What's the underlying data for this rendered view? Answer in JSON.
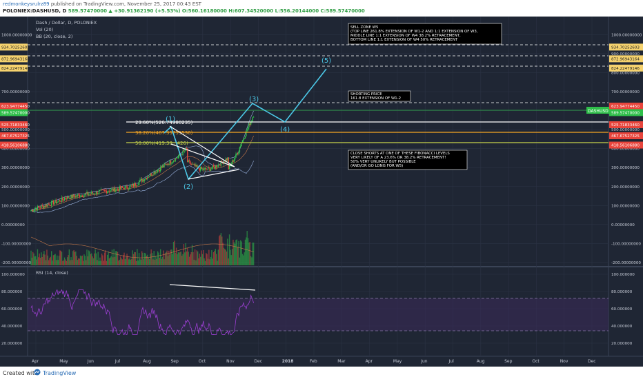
{
  "header": {
    "user": "redmonkeysrulrz89",
    "published": "published on TradingView.com, November 25, 2017 00:43 EST",
    "ohlc_prefix": "POLONIEX:DASHUSD, D",
    "ohlc_change": "589.57470000 ▲ +30.91362190 (+5.53%) O:560.16180000 H:607.34520000 L:556.20144000 C:589.57470000"
  },
  "legend": {
    "symbol": "Dash / Dollar, D, POLONIEX",
    "vol": "Vol (20)",
    "bb": "BB (20, close, 2)",
    "rsi": "RSI (14, close)"
  },
  "price_axis": {
    "ticks": [
      "1000.00000000",
      "900.00000000",
      "800.00000000",
      "700.00000000",
      "600.00000000",
      "500.00000000",
      "400.00000000",
      "300.00000000",
      "200.00000000",
      "100.00000000",
      "0.00000000",
      "-100.00000000",
      "-200.00000000"
    ]
  },
  "rsi_axis": {
    "ticks": [
      "100.000000",
      "80.000000",
      "60.000000",
      "40.000000",
      "20.000000"
    ]
  },
  "left_price_axis": {
    "ticks": [
      "1000.00000000",
      "700.00000000",
      "500.00000000",
      "400.00000000",
      "300.00000000",
      "200.00000000",
      "100.00000000",
      "0.00000000",
      "-100.00000000",
      "-200.00000000"
    ]
  },
  "left_rsi_axis": {
    "ticks": [
      "100.000000",
      "80.000000",
      "60.000000",
      "40.000000",
      "20.000000"
    ]
  },
  "price_tags": [
    {
      "value": "934.70252603",
      "color": "#f5d26e"
    },
    {
      "value": "872.96943164",
      "color": "#f5d26e"
    },
    {
      "value": "824.22479146",
      "color": "#f5d26e"
    },
    {
      "value": "623.94774450",
      "color": "#e8453c"
    },
    {
      "value": "589.57470000",
      "color": "#2fbf4a"
    },
    {
      "value": "525.71833460",
      "color": "#e8453c"
    },
    {
      "value": "467.67527325",
      "color": "#e8453c"
    },
    {
      "value": "418.56106880",
      "color": "#e8453c"
    }
  ],
  "right_symbol_tag": "DASHUSD",
  "fib_labels": [
    {
      "text": "23.60%(526.74980235)"
    },
    {
      "text": "38.20%(467.35755536)"
    },
    {
      "text": "50.00%(419.38...426)"
    }
  ],
  "wave_labels": [
    "(1)",
    "(2)",
    "(3)",
    "(4)",
    "(5)"
  ],
  "notes": {
    "sell_zone": [
      "SELL ZONE W5",
      "(TOP LINE 261.8% EXTENSION OF W1-2 AND 1:1 EXTENSION OF W3,",
      "MIDDLE LINE 1:1 EXTENSION OF W4 38.2% RETRACEMENT,",
      "BOTTOM LINE 1:1 EXTENSION OF W4 50% RETRACEMENT"
    ],
    "shorting": [
      "SHORTING PRICE",
      "161.8 EXTENSION OF W1-2"
    ],
    "close_shorts": [
      "CLOSE SHORTS AT ONE OF THESE FIBONACCI LEVELS",
      "VERY LIKELY OF A 23.6% OR 38.2% RETRACEMENT!",
      "50% VERY UNLIKELY BUT POSSIBLE",
      "(AND/OR GO LONG FOR W5)"
    ]
  },
  "time_axis": {
    "labels": [
      "Apr",
      "May",
      "Jun",
      "Jul",
      "Aug",
      "Sep",
      "Oct",
      "Nov",
      "Dec",
      "2018",
      "Feb",
      "Mar",
      "Apr",
      "May",
      "Jun",
      "Jul",
      "Aug",
      "Sep",
      "Oct",
      "Nov",
      "Dec"
    ]
  },
  "footer": {
    "created": "Created with",
    "brand": "TradingView"
  },
  "colors": {
    "background": "#1f2634",
    "candle_up": "#2fbf4a",
    "candle_down": "#e8453c",
    "wave": "#4cc9e8",
    "rsi": "#9b3fd1",
    "bb": "#8aa0c8"
  }
}
